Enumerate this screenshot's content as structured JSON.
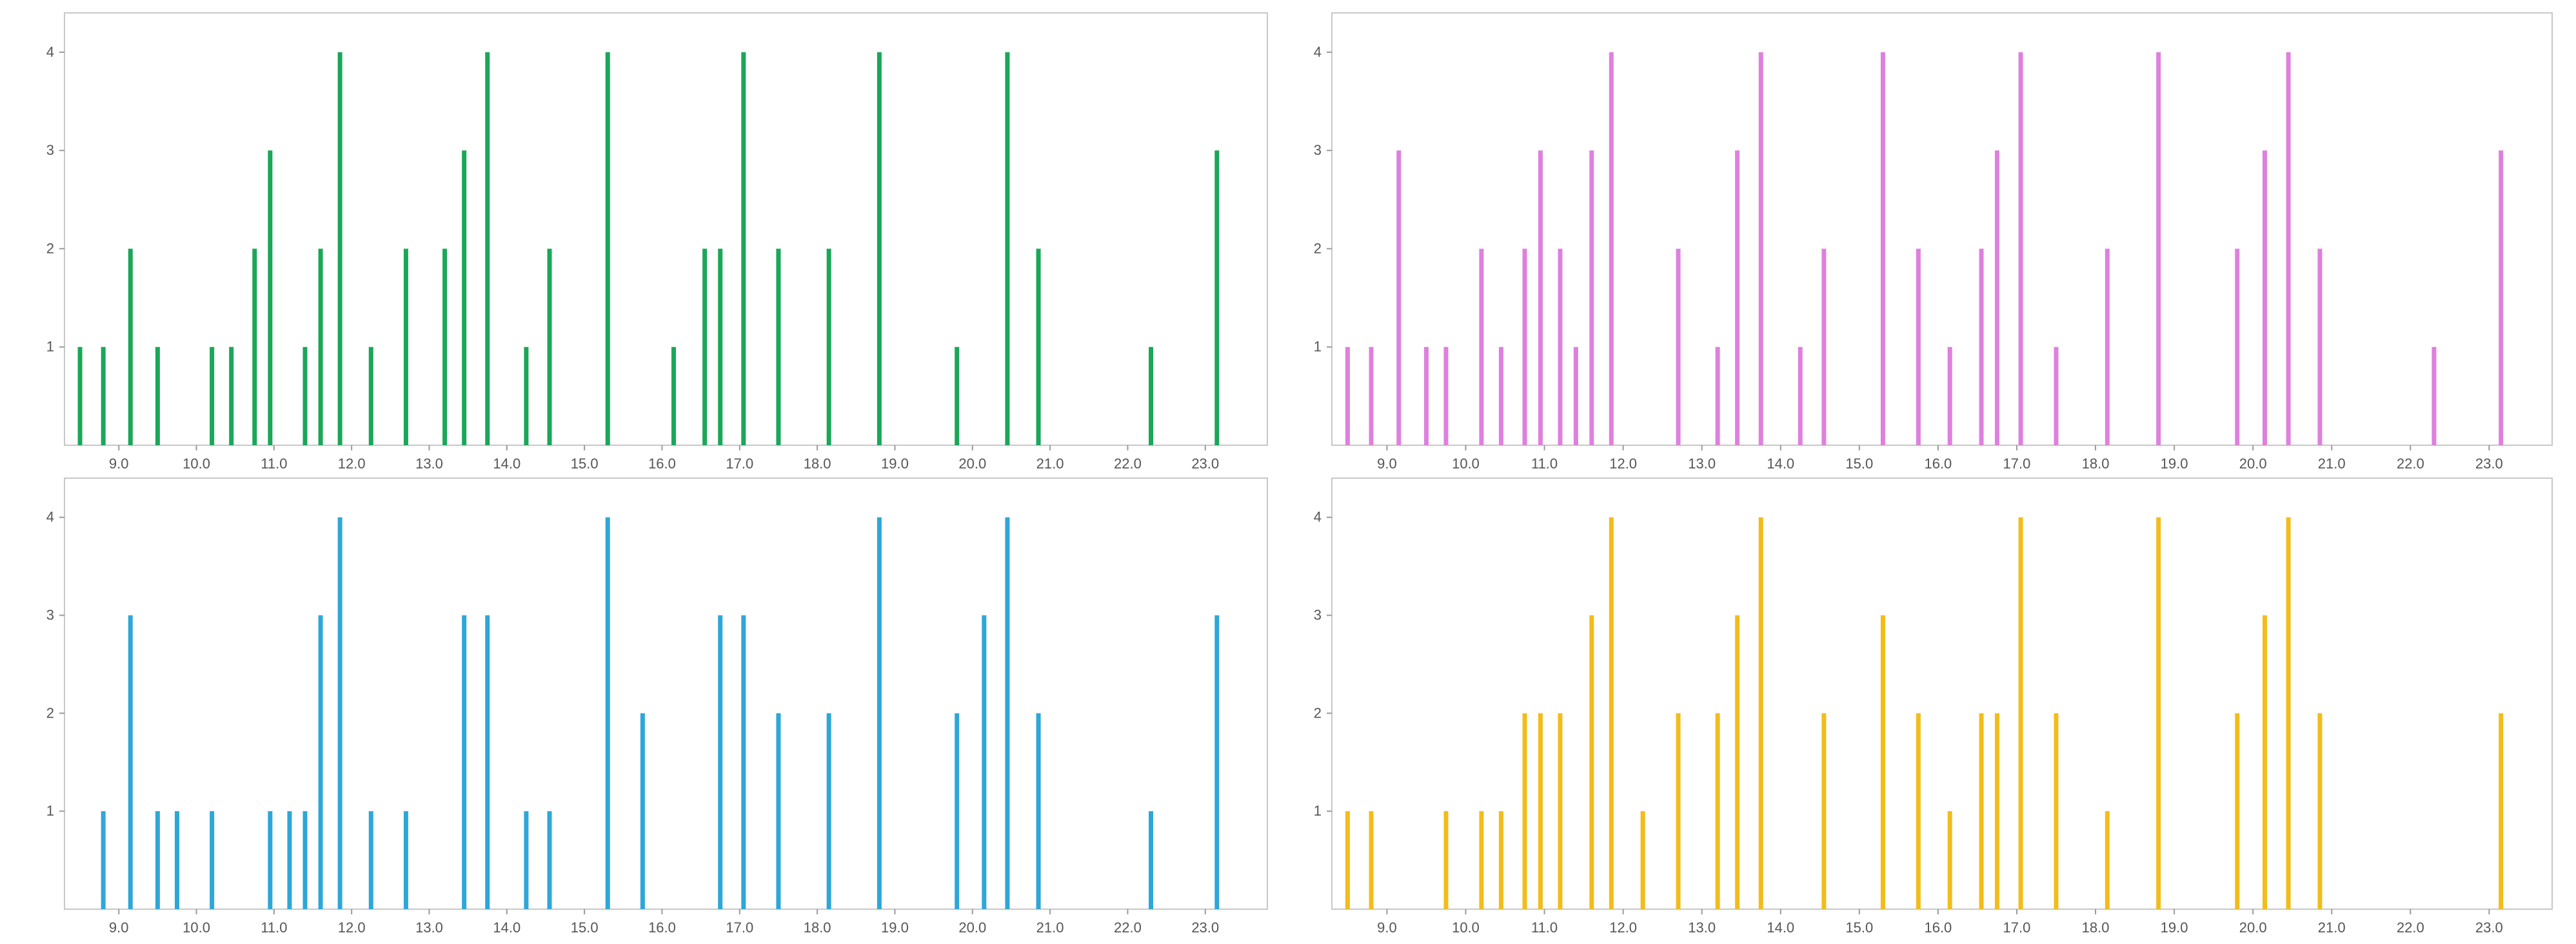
{
  "chart_data": [
    {
      "type": "bar",
      "color": "#1aa758",
      "xlim": [
        8.3,
        23.8
      ],
      "ylim": [
        0,
        4.4
      ],
      "x_ticks": [
        "9.0",
        "10.0",
        "11.0",
        "12.0",
        "13.0",
        "14.0",
        "15.0",
        "16.0",
        "17.0",
        "18.0",
        "19.0",
        "20.0",
        "21.0",
        "22.0",
        "23.0"
      ],
      "y_ticks": [
        "1",
        "2",
        "3",
        "4"
      ],
      "x": [
        8.5,
        8.8,
        9.15,
        9.5,
        10.2,
        10.45,
        10.75,
        10.95,
        11.4,
        11.6,
        11.85,
        12.25,
        12.7,
        13.2,
        13.45,
        13.75,
        14.25,
        14.55,
        15.3,
        16.15,
        16.55,
        16.75,
        17.05,
        17.5,
        18.15,
        18.8,
        19.8,
        20.45,
        20.85,
        22.3,
        23.15
      ],
      "values": [
        1,
        1,
        2,
        1,
        1,
        1,
        2,
        3,
        1,
        2,
        4,
        1,
        2,
        2,
        3,
        4,
        1,
        2,
        4,
        1,
        2,
        2,
        4,
        2,
        2,
        4,
        1,
        4,
        2,
        1,
        3
      ]
    },
    {
      "type": "bar",
      "color": "#de80de",
      "xlim": [
        8.3,
        23.8
      ],
      "ylim": [
        0,
        4.4
      ],
      "x_ticks": [
        "9.0",
        "10.0",
        "11.0",
        "12.0",
        "13.0",
        "14.0",
        "15.0",
        "16.0",
        "17.0",
        "18.0",
        "19.0",
        "20.0",
        "21.0",
        "22.0",
        "23.0"
      ],
      "y_ticks": [
        "1",
        "2",
        "3",
        "4"
      ],
      "x": [
        8.5,
        8.8,
        9.15,
        9.5,
        9.75,
        10.2,
        10.45,
        10.75,
        10.95,
        11.2,
        11.4,
        11.6,
        11.85,
        12.7,
        13.2,
        13.45,
        13.75,
        14.25,
        14.55,
        15.3,
        15.75,
        16.15,
        16.55,
        16.75,
        17.05,
        17.5,
        18.15,
        18.8,
        19.8,
        20.15,
        20.45,
        20.85,
        22.3,
        23.15
      ],
      "values": [
        1,
        1,
        3,
        1,
        1,
        2,
        1,
        2,
        3,
        2,
        1,
        3,
        4,
        2,
        1,
        3,
        4,
        1,
        2,
        4,
        2,
        1,
        2,
        3,
        4,
        1,
        2,
        4,
        2,
        3,
        4,
        2,
        1,
        3
      ]
    },
    {
      "type": "bar",
      "color": "#2ea7d8",
      "xlim": [
        8.3,
        23.8
      ],
      "ylim": [
        0,
        4.4
      ],
      "x_ticks": [
        "9.0",
        "10.0",
        "11.0",
        "12.0",
        "13.0",
        "14.0",
        "15.0",
        "16.0",
        "17.0",
        "18.0",
        "19.0",
        "20.0",
        "21.0",
        "22.0",
        "23.0"
      ],
      "y_ticks": [
        "1",
        "2",
        "3",
        "4"
      ],
      "x": [
        8.8,
        9.15,
        9.5,
        9.75,
        10.2,
        10.95,
        11.2,
        11.4,
        11.6,
        11.85,
        12.25,
        12.7,
        13.45,
        13.75,
        14.25,
        14.55,
        15.3,
        15.75,
        16.75,
        17.05,
        17.5,
        18.15,
        18.8,
        19.8,
        20.15,
        20.45,
        20.85,
        22.3,
        23.15
      ],
      "values": [
        1,
        3,
        1,
        1,
        1,
        1,
        1,
        1,
        3,
        4,
        1,
        1,
        3,
        3,
        1,
        1,
        4,
        2,
        3,
        3,
        2,
        2,
        4,
        2,
        3,
        4,
        2,
        1,
        3
      ]
    },
    {
      "type": "bar",
      "color": "#f2bd1a",
      "xlim": [
        8.3,
        23.8
      ],
      "ylim": [
        0,
        4.4
      ],
      "x_ticks": [
        "9.0",
        "10.0",
        "11.0",
        "12.0",
        "13.0",
        "14.0",
        "15.0",
        "16.0",
        "17.0",
        "18.0",
        "19.0",
        "20.0",
        "21.0",
        "22.0",
        "23.0"
      ],
      "y_ticks": [
        "1",
        "2",
        "3",
        "4"
      ],
      "x": [
        8.5,
        8.8,
        9.75,
        10.2,
        10.45,
        10.75,
        10.95,
        11.2,
        11.6,
        11.85,
        12.25,
        12.7,
        13.2,
        13.45,
        13.75,
        14.55,
        15.3,
        15.75,
        16.15,
        16.55,
        16.75,
        17.05,
        17.5,
        18.15,
        18.8,
        19.8,
        20.15,
        20.45,
        20.85,
        23.15
      ],
      "values": [
        1,
        1,
        1,
        1,
        1,
        2,
        2,
        2,
        3,
        4,
        1,
        2,
        2,
        3,
        4,
        2,
        3,
        2,
        1,
        2,
        2,
        4,
        2,
        1,
        4,
        2,
        3,
        4,
        2,
        2
      ]
    }
  ]
}
